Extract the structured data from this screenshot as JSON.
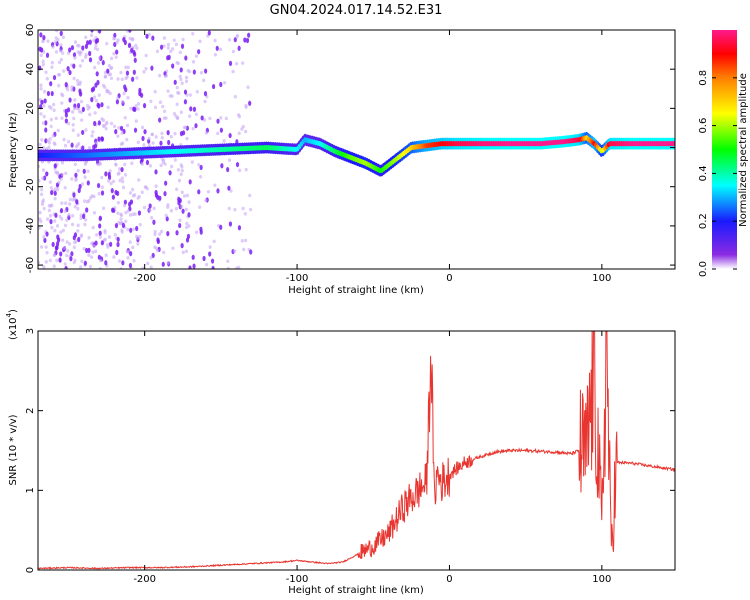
{
  "title": "GN04.2024.017.14.52.E31",
  "colors": {
    "snr_line": "#e8352f",
    "track": "#ff0000",
    "noise": "#7a1cf2",
    "axes": "#000000"
  },
  "colorbar": {
    "label": "Normalized spectral amplitude",
    "ticks": [
      "0.0",
      "0.2",
      "0.4",
      "0.6",
      "0.8"
    ],
    "tick_values": [
      0.0,
      0.2,
      0.4,
      0.6,
      0.8
    ],
    "range": [
      0,
      1
    ]
  },
  "chart_data": [
    {
      "type": "heatmap",
      "xlabel": "Height of straight line (km)",
      "ylabel": "Frequency (Hz)",
      "xlim": [
        -270,
        148
      ],
      "ylim": [
        -62,
        60
      ],
      "xticks": [
        -200,
        -100,
        0,
        100
      ],
      "xtick_labels": [
        "-200",
        "-100",
        "0",
        "100"
      ],
      "yticks": [
        60,
        40,
        20,
        0,
        -20,
        -40,
        -60
      ],
      "ytick_labels": [
        "60",
        "40",
        "20",
        "0",
        "-20",
        "-40",
        "-60"
      ],
      "track": {
        "x": [
          -270,
          -240,
          -210,
          -180,
          -150,
          -120,
          -100,
          -95,
          -85,
          -75,
          -65,
          -55,
          -45,
          -35,
          -25,
          -15,
          -5,
          5,
          20,
          40,
          60,
          75,
          85,
          90,
          95,
          100,
          105,
          120,
          148
        ],
        "freq": [
          -4,
          -4,
          -3,
          -2,
          -1,
          0,
          -1,
          4,
          2,
          -2,
          -5,
          -8,
          -12,
          -6,
          0,
          1,
          2,
          2,
          2,
          2,
          2,
          3,
          4,
          5,
          2,
          -2,
          2,
          2,
          2
        ],
        "amplitude": [
          0.2,
          0.25,
          0.3,
          0.35,
          0.4,
          0.45,
          0.35,
          0.3,
          0.35,
          0.45,
          0.55,
          0.6,
          0.5,
          0.6,
          0.7,
          0.85,
          0.9,
          0.95,
          0.98,
          1.0,
          1.0,
          1.0,
          0.95,
          0.7,
          0.9,
          0.6,
          0.95,
          1.0,
          1.0
        ]
      }
    },
    {
      "type": "line",
      "xlabel": "Height of straight line (km)",
      "ylabel": "SNR (10 * v/v)",
      "ylabel_scale": "(x10",
      "ylabel_scale_exp": "4",
      "ylabel_scale_close": ")",
      "xlim": [
        -270,
        148
      ],
      "ylim": [
        0,
        3
      ],
      "xticks": [
        -200,
        -100,
        0,
        100
      ],
      "xtick_labels": [
        "-200",
        "-100",
        "0",
        "100"
      ],
      "yticks": [
        0,
        1,
        2,
        3
      ],
      "ytick_labels": [
        "0",
        "1",
        "2",
        "3"
      ],
      "series": [
        {
          "x": [
            -270,
            -250,
            -230,
            -210,
            -190,
            -170,
            -150,
            -130,
            -110,
            -100,
            -90,
            -80,
            -70,
            -60,
            -50,
            -40,
            -30,
            -20,
            -15,
            -12,
            -10,
            -8,
            -5,
            0,
            10,
            20,
            30,
            40,
            50,
            60,
            70,
            80,
            85,
            90,
            95,
            100,
            103,
            106,
            110,
            120,
            130,
            140,
            148
          ],
          "y": [
            0.02,
            0.03,
            0.02,
            0.03,
            0.03,
            0.04,
            0.06,
            0.08,
            0.1,
            0.12,
            0.1,
            0.08,
            0.1,
            0.2,
            0.3,
            0.45,
            0.8,
            1.0,
            1.1,
            2.8,
            0.9,
            1.2,
            1.1,
            1.2,
            1.35,
            1.42,
            1.48,
            1.5,
            1.5,
            1.49,
            1.48,
            1.46,
            1.5,
            1.45,
            2.5,
            0.5,
            3.0,
            0.3,
            1.35,
            1.34,
            1.31,
            1.28,
            1.26
          ]
        }
      ]
    }
  ]
}
